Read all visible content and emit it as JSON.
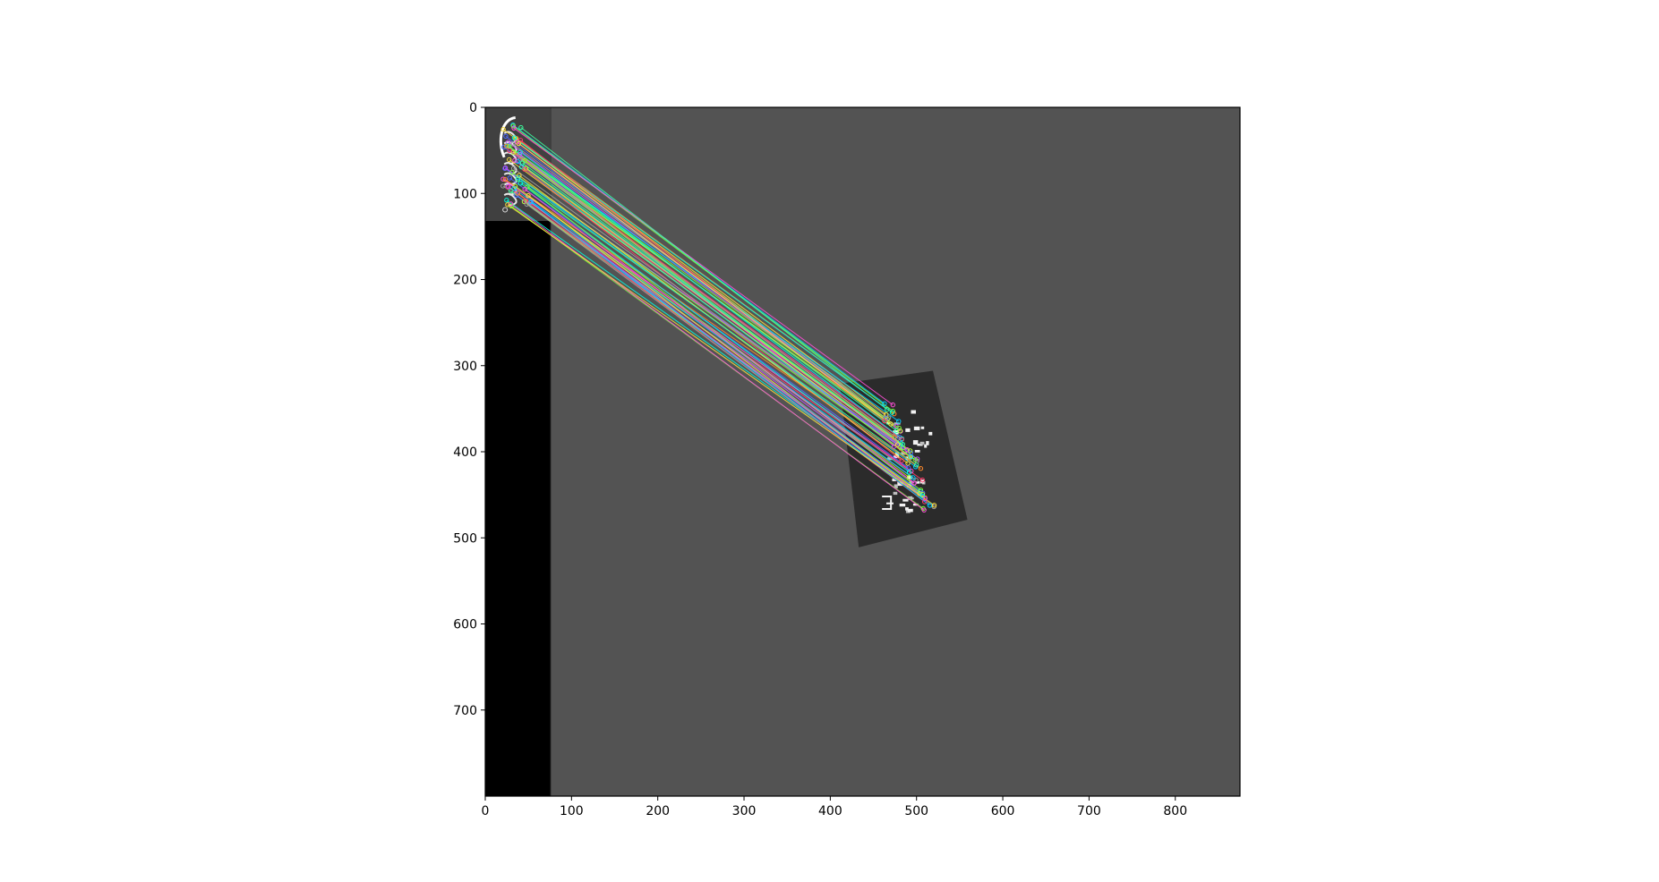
{
  "figure": {
    "type": "image_with_feature_matches",
    "background": "#ffffff"
  },
  "axes": {
    "x": {
      "ticks": [
        0,
        100,
        200,
        300,
        400,
        500,
        600,
        700,
        800
      ],
      "lim": [
        0,
        875
      ]
    },
    "y": {
      "ticks": [
        0,
        100,
        200,
        300,
        400,
        500,
        600,
        700
      ],
      "lim": [
        0,
        800
      ],
      "inverted": true
    }
  },
  "image": {
    "canvas_color": "#535353",
    "template_panel_color": "#404040",
    "black_area_color": "#000000",
    "template_panel_width": 76,
    "template_panel_height": 132,
    "rotated_patch_color": "#2b2b2b",
    "rotated_patch_corners": [
      [
        411,
        321
      ],
      [
        519,
        306
      ],
      [
        559,
        479
      ],
      [
        433,
        511
      ]
    ]
  },
  "matches": {
    "count": 64,
    "source_region": {
      "x": [
        20,
        55
      ],
      "y": [
        22,
        118
      ]
    },
    "target_region": {
      "x": [
        455,
        520
      ],
      "y": [
        345,
        465
      ]
    },
    "line_colors": [
      "#00c8ff",
      "#7aff3c",
      "#ff4fd8",
      "#ffe23c",
      "#3cff9e",
      "#4f6bff",
      "#ff8a2a",
      "#b6ff3c",
      "#00ffe0",
      "#ff3c6b",
      "#c44fff",
      "#a0a0a0"
    ]
  }
}
